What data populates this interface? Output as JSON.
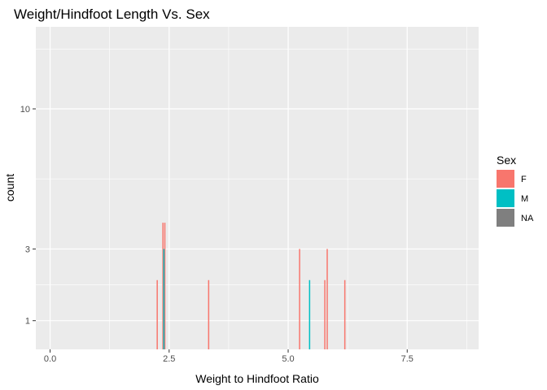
{
  "chart_data": {
    "type": "bar",
    "title": "Weight/Hindfoot Length Vs. Sex",
    "xlabel": "Weight to Hindfoot Ratio",
    "ylabel": "count",
    "xlim": [
      -0.3,
      9.0
    ],
    "x_ticks": [
      0.0,
      2.5,
      5.0,
      7.5
    ],
    "x_tick_labels": [
      "0.0",
      "2.5",
      "5.0",
      "7.5"
    ],
    "y_scale": "sqrt",
    "ylim": [
      0.5,
      16
    ],
    "y_ticks": [
      1,
      3,
      10
    ],
    "y_tick_labels": [
      "1",
      "3",
      "10"
    ],
    "grid": true,
    "legend": {
      "title": "Sex",
      "position": "right",
      "entries": [
        {
          "label": "F",
          "color": "#F8766D"
        },
        {
          "label": "M",
          "color": "#00BFC4"
        },
        {
          "label": "NA",
          "color": "#7F7F7F"
        }
      ]
    },
    "series": [
      {
        "name": "F",
        "color": "#F8766D",
        "bars": [
          {
            "x": 2.25,
            "count": 2
          },
          {
            "x": 2.37,
            "count": 4
          },
          {
            "x": 2.41,
            "count": 4
          },
          {
            "x": 3.33,
            "count": 2
          },
          {
            "x": 5.24,
            "count": 3
          },
          {
            "x": 5.77,
            "count": 2
          },
          {
            "x": 5.82,
            "count": 3
          },
          {
            "x": 6.19,
            "count": 2
          }
        ]
      },
      {
        "name": "M",
        "color": "#00BFC4",
        "bars": [
          {
            "x": 2.39,
            "count": 3
          },
          {
            "x": 5.45,
            "count": 2
          }
        ]
      }
    ]
  }
}
